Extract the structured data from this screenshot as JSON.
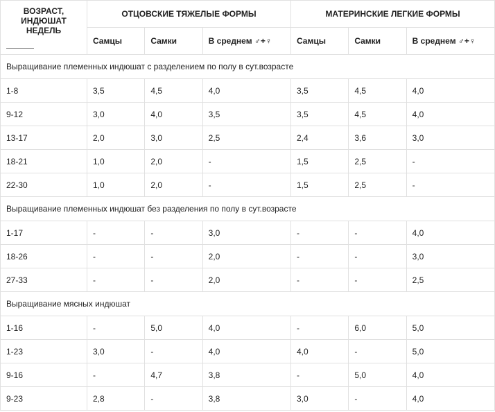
{
  "header": {
    "age_caption_l1": "ВОЗРАСТ,",
    "age_caption_l2": "ИНДЮШАТ",
    "age_caption_l3": "НЕДЕЛЬ",
    "group_paternal": "ОТЦОВСКИЕ ТЯЖЕЛЫЕ ФОРМЫ",
    "group_maternal": "МАТЕРИНСКИЕ ЛЕГКИЕ ФОРМЫ",
    "sub_male": "Самцы",
    "sub_female": "Самки",
    "sub_avg": "В среднем ♂+♀"
  },
  "sections": [
    {
      "title": "Выращивание племенных индюшат с разделением по полу в сут.возрасте"
    },
    {
      "title": "Выращивание племенных индюшат без разделения по полу в сут.возрасте"
    },
    {
      "title": "Выращивание мясных индюшат"
    }
  ],
  "rows": {
    "s1": [
      {
        "age": "1-8",
        "pm": "3,5",
        "pf": "4,5",
        "pa": "4,0",
        "mm": "3,5",
        "mf": "4,5",
        "ma": "4,0"
      },
      {
        "age": "9-12",
        "pm": "3,0",
        "pf": "4,0",
        "pa": "3,5",
        "mm": "3,5",
        "mf": "4,5",
        "ma": "4,0"
      },
      {
        "age": "13-17",
        "pm": "2,0",
        "pf": "3,0",
        "pa": "2,5",
        "mm": "2,4",
        "mf": "3,6",
        "ma": "3,0"
      },
      {
        "age": "18-21",
        "pm": "1,0",
        "pf": "2,0",
        "pa": "-",
        "mm": "1,5",
        "mf": "2,5",
        "ma": "-"
      },
      {
        "age": "22-30",
        "pm": "1,0",
        "pf": "2,0",
        "pa": "-",
        "mm": "1,5",
        "mf": "2,5",
        "ma": "-"
      }
    ],
    "s2": [
      {
        "age": "1-17",
        "pm": "-",
        "pf": "-",
        "pa": "3,0",
        "mm": "-",
        "mf": "-",
        "ma": "4,0"
      },
      {
        "age": "18-26",
        "pm": "-",
        "pf": "-",
        "pa": "2,0",
        "mm": "-",
        "mf": "-",
        "ma": "3,0"
      },
      {
        "age": "27-33",
        "pm": "-",
        "pf": "-",
        "pa": "2,0",
        "mm": "-",
        "mf": "-",
        "ma": "2,5"
      }
    ],
    "s3": [
      {
        "age": "1-16",
        "pm": "-",
        "pf": "5,0",
        "pa": "4,0",
        "mm": "-",
        "mf": "6,0",
        "ma": "5,0"
      },
      {
        "age": "1-23",
        "pm": "3,0",
        "pf": "-",
        "pa": "4,0",
        "mm": "4,0",
        "mf": "-",
        "ma": "5,0"
      },
      {
        "age": "9-16",
        "pm": "-",
        "pf": "4,7",
        "pa": "3,8",
        "mm": "-",
        "mf": "5,0",
        "ma": "4,0"
      },
      {
        "age": "9-23",
        "pm": "2,8",
        "pf": "-",
        "pa": "3,8",
        "mm": "3,0",
        "mf": "-",
        "ma": "4,0"
      }
    ]
  }
}
